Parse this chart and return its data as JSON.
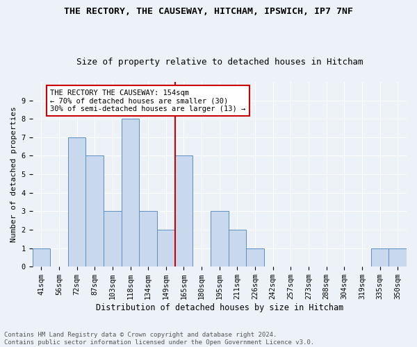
{
  "title1": "THE RECTORY, THE CAUSEWAY, HITCHAM, IPSWICH, IP7 7NF",
  "title2": "Size of property relative to detached houses in Hitcham",
  "xlabel": "Distribution of detached houses by size in Hitcham",
  "ylabel": "Number of detached properties",
  "categories": [
    "41sqm",
    "56sqm",
    "72sqm",
    "87sqm",
    "103sqm",
    "118sqm",
    "134sqm",
    "149sqm",
    "165sqm",
    "180sqm",
    "195sqm",
    "211sqm",
    "226sqm",
    "242sqm",
    "257sqm",
    "273sqm",
    "288sqm",
    "304sqm",
    "319sqm",
    "335sqm",
    "350sqm"
  ],
  "values": [
    1,
    0,
    7,
    6,
    3,
    8,
    3,
    2,
    6,
    0,
    3,
    2,
    1,
    0,
    0,
    0,
    0,
    0,
    0,
    1,
    1
  ],
  "bar_color": "#c9d9ed",
  "bar_edge_color": "#5a8fc0",
  "highlight_line_color": "#cc0000",
  "annotation_text": "THE RECTORY THE CAUSEWAY: 154sqm\n← 70% of detached houses are smaller (30)\n30% of semi-detached houses are larger (13) →",
  "annotation_box_color": "#ffffff",
  "annotation_box_edge_color": "#cc0000",
  "ylim": [
    0,
    10
  ],
  "yticks": [
    0,
    1,
    2,
    3,
    4,
    5,
    6,
    7,
    8,
    9,
    10
  ],
  "footer_text": "Contains HM Land Registry data © Crown copyright and database right 2024.\nContains public sector information licensed under the Open Government Licence v3.0.",
  "background_color": "#edf2f9",
  "grid_color": "#ffffff",
  "title1_fontsize": 9.5,
  "title2_fontsize": 9,
  "xlabel_fontsize": 8.5,
  "ylabel_fontsize": 8,
  "tick_fontsize": 7.5,
  "annotation_fontsize": 7.5,
  "footer_fontsize": 6.5
}
